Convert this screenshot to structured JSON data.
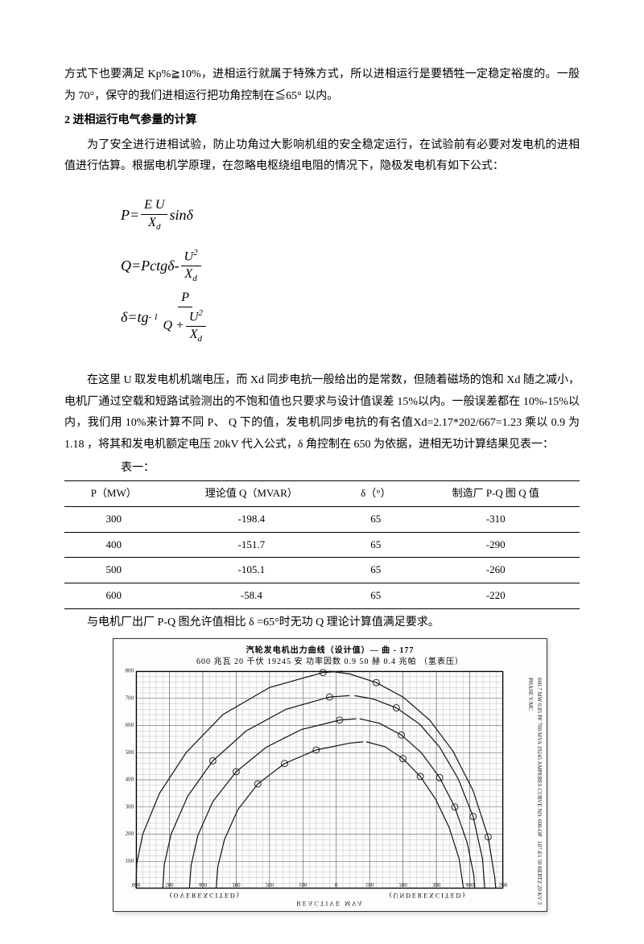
{
  "intro": {
    "p1": "方式下也要满足 Kp%≧10%，进相运行就属于特殊方式，所以进相运行是要牺牲一定稳定裕度的。一般为 70°，保守的我们进相运行把功角控制在≦65° 以内。",
    "heading": "2 进相运行电气参量的计算",
    "p2": "为了安全进行进相试验，防止功角过大影响机组的安全稳定运行，在试验前有必要对发电机的进相值进行估算。根据电机学原理，在忽略电枢绕组电阻的情况下，隐极发电机有如下公式："
  },
  "formulas": {
    "f1": {
      "lhs": "P",
      "eq": " = ",
      "num": "E U",
      "den": "X",
      "den_sub": "d",
      "tail": "sinδ"
    },
    "f2": {
      "lhs": "Q",
      "eq": " =  ",
      "mid": "Pctgδ",
      "minus": " - ",
      "num": "U",
      "num_sup": "2",
      "den": "X",
      "den_sub": "d"
    },
    "f3": {
      "lhs": "δ",
      "eq": " = ",
      "tg": "tg",
      "inv": " - 1",
      "top_num": "P",
      "bot_lhs": "Q + ",
      "bot_num": "U",
      "bot_num_sup": "2",
      "bot_den": "X",
      "bot_den_sub": "d"
    }
  },
  "after": {
    "p3": "在这里 U 取发电机机端电压，而 Xd 同步电抗一般给出的是常数，但随着磁场的饱和 Xd   随之减小，电机厂通过空载和短路试验测出的不饱和值也只要求与设计值误差 15%以内。一般误差都在 10%-15%以内，我们用 10%来计算不同 P、      Q      下的值，发电机同步电抗的有名值Xd=2.17*202/667=1.23 乘以 0.9 为 1.18    ，将其和发电机额定电压 20kV 代入公式，δ 角控制在 650 为依据，进相无功计算结果见表一：",
    "tablelabel": "表一："
  },
  "table": {
    "headers": [
      "P（MW）",
      "理论值 Q（MVAR）",
      "δ（°）",
      "制造厂 P-Q 图 Q 值"
    ],
    "rows": [
      [
        "300",
        "-198.4",
        "65",
        "-310"
      ],
      [
        "400",
        "-151.7",
        "65",
        "-290"
      ],
      [
        "500",
        "-105.1",
        "65",
        "-260"
      ],
      [
        "600",
        "-58.4",
        "65",
        "-220"
      ]
    ]
  },
  "p4": "与电机厂出厂 P-Q 图允许值相比 δ =65°时无功 Q 理论计算值满足要求。",
  "chart": {
    "title1": "汽轮发电机出力曲线（设计值）— 曲 - 177",
    "title2": "600 兆瓦   20 千伏   19245 安   功率因数 0.9   50 赫   0.4 兆帕 （氢表压）",
    "right1": "660.7 MW   0.85 PF   700 MVA   19245 AMPERES   CURVE NO. 600-OP",
    "right2": "187-E1   50 HERTZ   20 KV   3 PHASE   Y-MC",
    "bottom_center": "REACTIVE MVA",
    "over": "(OVEREXCITED)",
    "under": "(UNDEREXCITED)",
    "ymax": 800,
    "xmin": -600,
    "xmax": 500,
    "major_grid": 100,
    "minor_grid": 20,
    "grid_color": "#555",
    "minor_color": "#999",
    "paper_bg": "#fdfdfc",
    "curve_color": "#111",
    "curve_width": 1.2,
    "circle_r": 4,
    "curves": [
      [
        [
          -600,
          0
        ],
        [
          -598,
          90
        ],
        [
          -580,
          200
        ],
        [
          -530,
          350
        ],
        [
          -450,
          500
        ],
        [
          -340,
          640
        ],
        [
          -200,
          740
        ],
        [
          -40,
          795
        ],
        [
          20,
          800
        ]
      ],
      [
        [
          -520,
          0
        ],
        [
          -515,
          90
        ],
        [
          -495,
          200
        ],
        [
          -445,
          340
        ],
        [
          -370,
          470
        ],
        [
          -270,
          580
        ],
        [
          -150,
          660
        ],
        [
          -20,
          705
        ],
        [
          40,
          710
        ]
      ],
      [
        [
          -440,
          0
        ],
        [
          -435,
          85
        ],
        [
          -415,
          195
        ],
        [
          -370,
          320
        ],
        [
          -300,
          430
        ],
        [
          -210,
          520
        ],
        [
          -105,
          585
        ],
        [
          10,
          620
        ],
        [
          60,
          625
        ]
      ],
      [
        [
          -360,
          0
        ],
        [
          -355,
          80
        ],
        [
          -335,
          180
        ],
        [
          -295,
          290
        ],
        [
          -235,
          385
        ],
        [
          -155,
          460
        ],
        [
          -60,
          510
        ],
        [
          40,
          535
        ],
        [
          80,
          540
        ]
      ],
      [
        [
          -20,
          800
        ],
        [
          40,
          790
        ],
        [
          120,
          758
        ],
        [
          200,
          705
        ],
        [
          280,
          620
        ],
        [
          350,
          505
        ],
        [
          410,
          360
        ],
        [
          455,
          190
        ],
        [
          475,
          40
        ],
        [
          478,
          0
        ]
      ],
      [
        [
          55,
          710
        ],
        [
          110,
          698
        ],
        [
          180,
          665
        ],
        [
          250,
          605
        ],
        [
          310,
          520
        ],
        [
          365,
          405
        ],
        [
          410,
          265
        ],
        [
          438,
          110
        ],
        [
          445,
          0
        ]
      ],
      [
        [
          70,
          625
        ],
        [
          130,
          608
        ],
        [
          195,
          565
        ],
        [
          255,
          500
        ],
        [
          310,
          408
        ],
        [
          355,
          300
        ],
        [
          392,
          170
        ],
        [
          412,
          50
        ],
        [
          415,
          0
        ]
      ],
      [
        [
          90,
          540
        ],
        [
          145,
          522
        ],
        [
          200,
          478
        ],
        [
          252,
          412
        ],
        [
          298,
          328
        ],
        [
          338,
          225
        ],
        [
          368,
          110
        ],
        [
          380,
          10
        ],
        [
          382,
          0
        ]
      ]
    ],
    "marker_chain": [
      [
        -370,
        470
      ],
      [
        -300,
        430
      ],
      [
        -235,
        385
      ],
      [
        -155,
        460
      ],
      [
        -60,
        510
      ],
      [
        10,
        620
      ],
      [
        -20,
        705
      ],
      [
        -40,
        795
      ],
      [
        120,
        758
      ],
      [
        180,
        665
      ],
      [
        195,
        565
      ],
      [
        200,
        478
      ],
      [
        252,
        412
      ],
      [
        310,
        408
      ],
      [
        355,
        300
      ],
      [
        410,
        265
      ],
      [
        455,
        190
      ]
    ],
    "xlabels": [
      -600,
      -500,
      -400,
      -300,
      -200,
      -100,
      0,
      100,
      200,
      300,
      400,
      500
    ],
    "ylabels": [
      0,
      100,
      200,
      300,
      400,
      500,
      600,
      700,
      800
    ]
  }
}
